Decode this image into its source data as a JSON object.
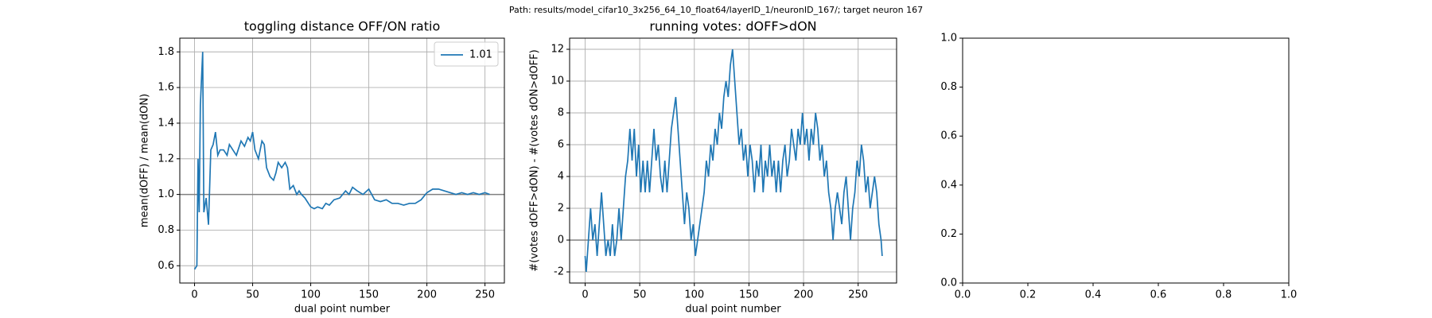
{
  "suptitle": "Path: results/model_cifar10_3x256_64_10_float64/layerID_1/neuronID_167/; target neuron 167",
  "chart_data": [
    {
      "type": "line",
      "title": "toggling distance OFF/ON ratio",
      "x_label": "dual point number",
      "y_label": "mean(dOFF) / mean(dON)",
      "x": [
        0,
        2,
        3,
        4,
        5,
        7,
        8,
        10,
        12,
        14,
        16,
        18,
        20,
        22,
        25,
        28,
        30,
        33,
        36,
        40,
        43,
        46,
        48,
        50,
        52,
        55,
        58,
        60,
        62,
        65,
        68,
        70,
        72,
        75,
        78,
        80,
        82,
        85,
        88,
        90,
        92,
        95,
        98,
        100,
        103,
        106,
        110,
        113,
        116,
        120,
        125,
        130,
        133,
        136,
        140,
        145,
        150,
        155,
        160,
        165,
        170,
        175,
        180,
        185,
        190,
        195,
        200,
        205,
        210,
        215,
        220,
        225,
        230,
        235,
        240,
        245,
        250,
        254
      ],
      "series": [
        {
          "name": "1.01",
          "color": "#1f77b4",
          "values": [
            0.58,
            0.6,
            1.2,
            0.9,
            1.5,
            1.8,
            0.9,
            0.98,
            0.83,
            1.25,
            1.28,
            1.35,
            1.22,
            1.25,
            1.25,
            1.22,
            1.28,
            1.25,
            1.22,
            1.3,
            1.27,
            1.32,
            1.3,
            1.35,
            1.25,
            1.2,
            1.3,
            1.28,
            1.15,
            1.1,
            1.08,
            1.12,
            1.18,
            1.15,
            1.18,
            1.15,
            1.03,
            1.05,
            1.0,
            1.02,
            1.0,
            0.98,
            0.95,
            0.93,
            0.92,
            0.93,
            0.92,
            0.95,
            0.94,
            0.97,
            0.98,
            1.02,
            1.0,
            1.04,
            1.02,
            1.0,
            1.03,
            0.97,
            0.96,
            0.97,
            0.95,
            0.95,
            0.94,
            0.95,
            0.95,
            0.97,
            1.01,
            1.03,
            1.03,
            1.02,
            1.01,
            1.0,
            1.01,
            1.0,
            1.01,
            1.0,
            1.01,
            1.0
          ]
        }
      ],
      "hline": 1,
      "hline_color": "#808080",
      "xlim": [
        -12.7,
        266.7
      ],
      "xticks": [
        0,
        50,
        100,
        150,
        200,
        250
      ],
      "ylim": [
        0.503,
        1.877
      ],
      "yticks": [
        0.6,
        0.8,
        {
          "value": 1.0,
          "label": "1.0"
        },
        1.2,
        1.4,
        1.6,
        1.8
      ],
      "grid": true,
      "legend": "upper right"
    },
    {
      "type": "line",
      "title": "running votes: dOFF>dON",
      "x_label": "dual point number",
      "y_label": "#(votes dOFF>dON) - #(votes dON>dOFF)",
      "x": [
        0,
        1,
        3,
        5,
        7,
        9,
        11,
        13,
        15,
        17,
        19,
        21,
        23,
        25,
        27,
        29,
        31,
        33,
        35,
        37,
        39,
        41,
        43,
        45,
        47,
        49,
        51,
        53,
        55,
        57,
        59,
        61,
        63,
        65,
        67,
        69,
        71,
        73,
        75,
        77,
        79,
        81,
        83,
        85,
        87,
        89,
        91,
        93,
        95,
        97,
        99,
        101,
        103,
        105,
        107,
        109,
        111,
        113,
        115,
        117,
        119,
        121,
        123,
        125,
        127,
        129,
        131,
        133,
        135,
        137,
        139,
        141,
        143,
        145,
        147,
        149,
        151,
        153,
        155,
        157,
        159,
        161,
        163,
        165,
        167,
        169,
        171,
        173,
        175,
        177,
        179,
        181,
        183,
        185,
        187,
        189,
        191,
        193,
        195,
        197,
        199,
        201,
        203,
        205,
        207,
        209,
        211,
        213,
        215,
        217,
        219,
        221,
        223,
        225,
        227,
        229,
        231,
        233,
        235,
        237,
        239,
        241,
        243,
        245,
        247,
        249,
        251,
        253,
        255,
        257,
        259,
        261,
        263,
        265,
        267,
        269,
        271,
        272
      ],
      "series": [
        {
          "name": "votes",
          "color": "#1f77b4",
          "values": [
            -1,
            -2,
            0,
            2,
            0,
            1,
            -1,
            1,
            3,
            1,
            -1,
            0,
            -1,
            1,
            -1,
            0,
            2,
            0,
            2,
            4,
            5,
            7,
            5,
            7,
            4,
            6,
            3,
            5,
            3,
            5,
            3,
            5,
            7,
            5,
            6,
            4,
            3,
            5,
            3,
            5,
            7,
            8,
            9,
            7,
            5,
            3,
            1,
            3,
            2,
            0,
            1,
            -1,
            0,
            1,
            2,
            3,
            5,
            4,
            6,
            5,
            7,
            6,
            8,
            7,
            9,
            10,
            9,
            11,
            12,
            10,
            8,
            6,
            7,
            5,
            6,
            4,
            6,
            5,
            3,
            5,
            4,
            6,
            3,
            5,
            4,
            6,
            4,
            5,
            3,
            5,
            3,
            5,
            6,
            4,
            5,
            7,
            6,
            5,
            7,
            6,
            8,
            6,
            7,
            5,
            7,
            6,
            8,
            7,
            5,
            6,
            4,
            5,
            3,
            2,
            0,
            2,
            3,
            2,
            1,
            3,
            4,
            2,
            0,
            2,
            3,
            5,
            4,
            6,
            5,
            3,
            4,
            2,
            3,
            4,
            3,
            1,
            0,
            -1
          ]
        }
      ],
      "hline": 0,
      "hline_color": "#808080",
      "xlim": [
        -14.2,
        285.2
      ],
      "xticks": [
        0,
        50,
        100,
        150,
        200,
        250
      ],
      "ylim": [
        -2.7,
        12.7
      ],
      "yticks": [
        -2,
        0,
        2,
        4,
        6,
        8,
        10,
        12
      ],
      "grid": true
    },
    {
      "type": "empty",
      "xlim": [
        0,
        1
      ],
      "xticks": [
        {
          "value": 0,
          "label": "0.0"
        },
        0.2,
        0.4,
        0.6,
        0.8,
        {
          "value": 1,
          "label": "1.0"
        }
      ],
      "ylim": [
        0,
        1
      ],
      "yticks": [
        {
          "value": 0,
          "label": "0.0"
        },
        0.2,
        0.4,
        0.6,
        0.8,
        {
          "value": 1,
          "label": "1.0"
        }
      ],
      "grid": false
    }
  ]
}
